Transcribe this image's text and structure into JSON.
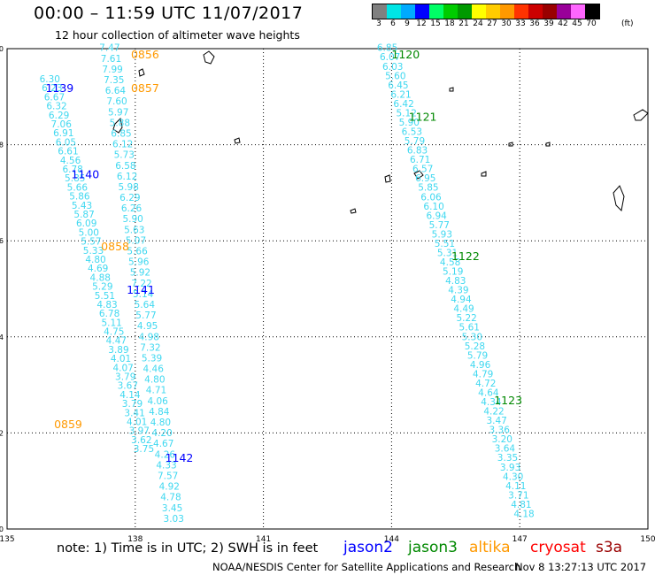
{
  "title": "00:00 – 11:59 UTC 11/07/2017",
  "subtitle": "12 hour collection of altimeter wave heights",
  "scale": {
    "labels": [
      "3",
      "6",
      "9",
      "12",
      "15",
      "18",
      "21",
      "24",
      "27",
      "30",
      "33",
      "36",
      "39",
      "42",
      "45",
      "70"
    ],
    "unit": "(ft)",
    "colors": [
      "#808080",
      "#00e5e5",
      "#00aaff",
      "#0000ff",
      "#00ff66",
      "#00cc00",
      "#009900",
      "#ffff00",
      "#ffcc00",
      "#ff9900",
      "#ff3300",
      "#cc0000",
      "#990000",
      "#990099",
      "#ff66ff",
      "#000000"
    ]
  },
  "map": {
    "lon_ticks": [
      "135",
      "138",
      "141",
      "144",
      "147",
      "150"
    ],
    "lat_ticks": [
      "0",
      "2",
      "4",
      "6",
      "8",
      "10"
    ],
    "lon_range": [
      135,
      150
    ],
    "lat_range": [
      0,
      10
    ]
  },
  "tracks": [
    {
      "satellite": "jason2",
      "color": "#40d8f0",
      "start": {
        "lon": 136.0,
        "lat": 9.3
      },
      "end": {
        "lon": 138.2,
        "lat": 1.6
      },
      "values": [
        "6.30",
        "6.23",
        "6.67",
        "6.32",
        "6.29",
        "7.06",
        "6.91",
        "6.05",
        "6.61",
        "4.56",
        "6.78",
        "5.85",
        "5.66",
        "5.86",
        "5.43",
        "5.87",
        "6.09",
        "5.00",
        "5.57",
        "5.33",
        "4.80",
        "4.69",
        "4.88",
        "5.29",
        "5.51",
        "4.83",
        "6.78",
        "5.11",
        "4.75",
        "4.47",
        "3.89",
        "4.01",
        "4.07",
        "3.79",
        "3.67",
        "4.14",
        "3.79",
        "3.41",
        "4.01",
        "3.97",
        "3.62",
        "3.75"
      ]
    },
    {
      "satellite": "jason2",
      "color": "#40d8f0",
      "start": {
        "lon": 137.4,
        "lat": 9.95
      },
      "end": {
        "lon": 138.9,
        "lat": 0.15
      },
      "values": [
        "7.47",
        "7.61",
        "7.99",
        "7.35",
        "6.64",
        "7.60",
        "5.97",
        "5.88",
        "6.85",
        "6.12",
        "5.73",
        "6.58",
        "6.12",
        "5.98",
        "6.29",
        "6.26",
        "5.90",
        "5.63",
        "5.07",
        "5.66",
        "5.96",
        "5.92",
        "7.22",
        "5.14",
        "5.64",
        "5.77",
        "4.95",
        "4.98",
        "7.32",
        "5.39",
        "4.46",
        "4.80",
        "4.71",
        "4.06",
        "4.84",
        "4.80",
        "4.20",
        "4.67",
        "4.26",
        "4.33",
        "7.57",
        "4.92",
        "4.78",
        "3.45",
        "3.03"
      ]
    },
    {
      "satellite": "jason3",
      "color": "#40d8f0",
      "start": {
        "lon": 143.9,
        "lat": 9.95
      },
      "end": {
        "lon": 147.1,
        "lat": 0.25
      },
      "values": [
        "6.85",
        "6.07",
        "6.03",
        "5.60",
        "6.45",
        "6.21",
        "6.42",
        "5.12",
        "5.90",
        "6.53",
        "5.79",
        "6.83",
        "6.71",
        "6.57",
        "6.95",
        "5.85",
        "6.06",
        "6.10",
        "6.94",
        "5.77",
        "5.93",
        "5.51",
        "5.31",
        "4.58",
        "5.19",
        "4.83",
        "4.39",
        "4.94",
        "4.49",
        "5.22",
        "5.61",
        "5.30",
        "5.28",
        "5.79",
        "4.96",
        "4.79",
        "4.72",
        "4.64",
        "4.34",
        "4.22",
        "3.47",
        "3.36",
        "3.20",
        "3.64",
        "3.35",
        "3.93",
        "4.30",
        "4.11",
        "3.71",
        "4.81",
        "4.18"
      ]
    }
  ],
  "times": [
    {
      "label": "0856",
      "satellite": "altika",
      "lon": 137.9,
      "lat": 9.8
    },
    {
      "label": "0857",
      "satellite": "altika",
      "lon": 137.9,
      "lat": 9.1
    },
    {
      "label": "0858",
      "satellite": "altika",
      "lon": 137.2,
      "lat": 5.8
    },
    {
      "label": "0859",
      "satellite": "altika",
      "lon": 136.1,
      "lat": 2.1
    },
    {
      "label": "1139",
      "satellite": "jason2",
      "lon": 135.9,
      "lat": 9.1
    },
    {
      "label": "1140",
      "satellite": "jason2",
      "lon": 136.5,
      "lat": 7.3
    },
    {
      "label": "1141",
      "satellite": "jason2",
      "lon": 137.8,
      "lat": 4.9
    },
    {
      "label": "1142",
      "satellite": "jason2",
      "lon": 138.7,
      "lat": 1.4
    },
    {
      "label": "1120",
      "satellite": "jason3",
      "lon": 144.0,
      "lat": 9.8
    },
    {
      "label": "1121",
      "satellite": "jason3",
      "lon": 144.4,
      "lat": 8.5
    },
    {
      "label": "1122",
      "satellite": "jason3",
      "lon": 145.4,
      "lat": 5.6
    },
    {
      "label": "1123",
      "satellite": "jason3",
      "lon": 146.4,
      "lat": 2.6
    }
  ],
  "footer": {
    "note": "note:  1) Time is in UTC;  2) SWH is in feet",
    "legend": [
      {
        "name": "jason2",
        "color": "#0000ff"
      },
      {
        "name": "jason3",
        "color": "#008800"
      },
      {
        "name": "altika",
        "color": "#ff9900"
      },
      {
        "name": "cryosat",
        "color": "#ff0000"
      },
      {
        "name": "s3a",
        "color": "#990000"
      }
    ],
    "credit": "NOAA/NESDIS Center for Satellite Applications and Research",
    "timestamp": "Nov  8 13:27:13 UTC 2017"
  }
}
